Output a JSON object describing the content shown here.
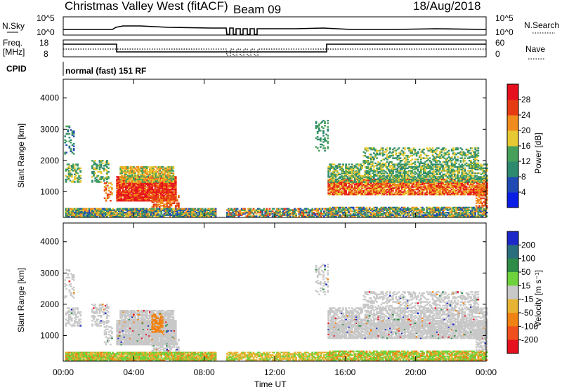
{
  "header": {
    "title": "Christmas Valley West (fitACF)",
    "beam": "Beam 09",
    "date": "18/Aug/2018"
  },
  "top_panels": {
    "nsky_label": "N.Sky",
    "nsky_ticks": [
      "10^5",
      "10^0"
    ],
    "nsearch_label": "N.Search",
    "nsearch_ticks": [
      "10^5",
      "10^0"
    ],
    "freq_label_1": "Freq.",
    "freq_label_2": "[MHz]",
    "freq_ticks": [
      "18",
      "8"
    ],
    "nave_label": "Nave",
    "nave_ticks": [
      "60",
      "0"
    ],
    "cpid_label": "CPID",
    "cpid_value": "normal (fast) 151 RF"
  },
  "chart_data": [
    {
      "type": "heatmap",
      "name": "power",
      "ylabel": "Slant Range [km]",
      "xlabel": "Time UT",
      "ylim": [
        180,
        4600
      ],
      "yticks": [
        "1000",
        "2000",
        "3000",
        "4000"
      ],
      "colorbar_label": "Power [dB]",
      "colorbar_ticks": [
        "4",
        "8",
        "12",
        "16",
        "20",
        "24",
        "28"
      ],
      "colorbar_colors": [
        "#0a1ee6",
        "#1f4ab4",
        "#2e8a6e",
        "#46a05a",
        "#e6c832",
        "#f08c1e",
        "#e63c14",
        "#e6101e"
      ]
    },
    {
      "type": "heatmap",
      "name": "velocity",
      "ylabel": "Slant Range [km]",
      "xlabel": "Time UT",
      "ylim": [
        180,
        4600
      ],
      "yticks": [
        "1000",
        "2000",
        "3000",
        "4000"
      ],
      "colorbar_label": "Velocity [m s⁻¹]",
      "colorbar_ticks": [
        "200",
        "100",
        "50",
        "15",
        "-15",
        "-50",
        "-100",
        "-200"
      ],
      "colorbar_colors": [
        "#1e28c8",
        "#2a6e7e",
        "#2e8c46",
        "#6ed23c",
        "#c8c8c8",
        "#e6b432",
        "#f08214",
        "#f0501e",
        "#e6101e"
      ]
    }
  ],
  "xaxis": {
    "ticks": [
      "00:00",
      "04:00",
      "08:00",
      "12:00",
      "16:00",
      "20:00",
      "00:00"
    ],
    "label": "Time UT"
  }
}
